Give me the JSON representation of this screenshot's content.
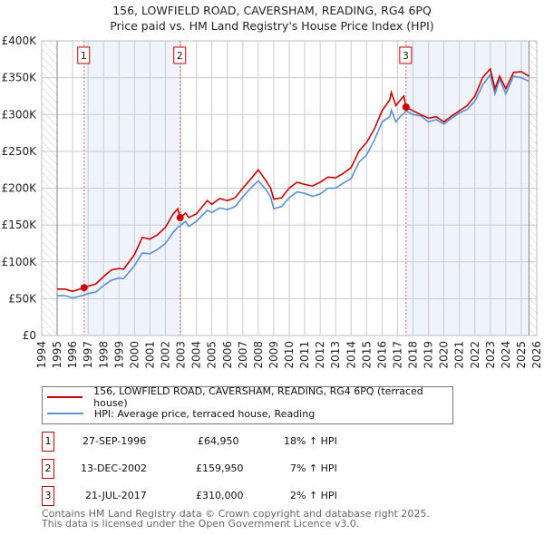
{
  "title": "156, LOWFIELD ROAD, CAVERSHAM, READING, RG4 6PQ",
  "subtitle": "Price paid vs. HM Land Registry's House Price Index (HPI)",
  "chart_data": {
    "type": "line",
    "xlim": [
      1994,
      2026
    ],
    "ylim": [
      0,
      400000
    ],
    "y_ticks": [
      {
        "v": 0,
        "label": "£0"
      },
      {
        "v": 50000,
        "label": "£50K"
      },
      {
        "v": 100000,
        "label": "£100K"
      },
      {
        "v": 150000,
        "label": "£150K"
      },
      {
        "v": 200000,
        "label": "£200K"
      },
      {
        "v": 250000,
        "label": "£250K"
      },
      {
        "v": 300000,
        "label": "£300K"
      },
      {
        "v": 350000,
        "label": "£350K"
      },
      {
        "v": 400000,
        "label": "£400K"
      }
    ],
    "x_ticks": [
      "1994",
      "1995",
      "1996",
      "1997",
      "1998",
      "1999",
      "2000",
      "2001",
      "2002",
      "2003",
      "2004",
      "2005",
      "2006",
      "2007",
      "2008",
      "2009",
      "2010",
      "2011",
      "2012",
      "2013",
      "2014",
      "2015",
      "2016",
      "2017",
      "2018",
      "2019",
      "2020",
      "2021",
      "2022",
      "2023",
      "2024",
      "2025",
      "2026"
    ],
    "data_range": [
      1995,
      2025.5
    ],
    "shaded": [
      [
        1996.74,
        2002.95
      ],
      [
        2017.55,
        2025.5
      ]
    ],
    "series": [
      {
        "name": "156, LOWFIELD ROAD, CAVERSHAM, READING, RG4 6PQ (terraced house)",
        "color": "#cc0000",
        "x": [
          1995,
          1995.5,
          1996,
          1996.75,
          1997,
          1997.5,
          1998,
          1998.5,
          1999,
          1999.3,
          2000,
          2000.5,
          2001,
          2001.5,
          2002,
          2002.5,
          2002.8,
          2002.95,
          2003.3,
          2003.5,
          2004,
          2004.7,
          2005,
          2005.5,
          2006,
          2006.5,
          2007,
          2007.5,
          2008,
          2008.5,
          2008.8,
          2009,
          2009.5,
          2010,
          2010.5,
          2011,
          2011.5,
          2012,
          2012.5,
          2013,
          2013.5,
          2014,
          2014.5,
          2015,
          2015.5,
          2016,
          2016.5,
          2016.6,
          2016.9,
          2017.2,
          2017.4,
          2017.55,
          2018,
          2018.5,
          2019,
          2019.5,
          2020,
          2020.5,
          2021,
          2021.5,
          2022,
          2022.5,
          2023,
          2023.3,
          2023.6,
          2024,
          2024.5,
          2025,
          2025.5
        ],
        "y": [
          63000,
          63000,
          60000,
          64950,
          67000,
          70000,
          80000,
          89000,
          91000,
          90000,
          110000,
          133000,
          131000,
          137000,
          147000,
          165000,
          172000,
          159950,
          166000,
          160000,
          165000,
          183000,
          178000,
          186000,
          183000,
          187000,
          200000,
          212000,
          225000,
          210000,
          200000,
          185000,
          187000,
          200000,
          208000,
          205000,
          203000,
          208000,
          215000,
          214000,
          220000,
          228000,
          250000,
          262000,
          280000,
          305000,
          320000,
          330000,
          312000,
          320000,
          325000,
          310000,
          305000,
          300000,
          295000,
          297000,
          290000,
          298000,
          305000,
          312000,
          325000,
          350000,
          362000,
          335000,
          352000,
          335000,
          357000,
          358000,
          352000
        ]
      },
      {
        "name": "HPI: Average price, terraced house, Reading",
        "color": "#5b8fd4",
        "x": [
          1995,
          1995.5,
          1996,
          1996.75,
          1997,
          1997.5,
          1998,
          1998.5,
          1999,
          1999.3,
          2000,
          2000.5,
          2001,
          2001.5,
          2002,
          2002.5,
          2002.8,
          2002.95,
          2003.3,
          2003.5,
          2004,
          2004.7,
          2005,
          2005.5,
          2006,
          2006.5,
          2007,
          2007.5,
          2008,
          2008.5,
          2008.8,
          2009,
          2009.5,
          2010,
          2010.5,
          2011,
          2011.5,
          2012,
          2012.5,
          2013,
          2013.5,
          2014,
          2014.5,
          2015,
          2015.5,
          2016,
          2016.5,
          2016.6,
          2016.9,
          2017.2,
          2017.4,
          2017.55,
          2018,
          2018.5,
          2019,
          2019.5,
          2020,
          2020.5,
          2021,
          2021.5,
          2022,
          2022.5,
          2023,
          2023.3,
          2023.6,
          2024,
          2024.5,
          2025,
          2025.5
        ],
        "y": [
          54000,
          54000,
          51000,
          55000,
          57000,
          59000,
          68000,
          75000,
          78000,
          77000,
          95000,
          112000,
          111000,
          117000,
          125000,
          140000,
          147000,
          149000,
          155000,
          148000,
          155000,
          170000,
          167000,
          173000,
          171000,
          175000,
          188000,
          200000,
          210000,
          198000,
          188000,
          172000,
          175000,
          187000,
          195000,
          193000,
          189000,
          192000,
          200000,
          200000,
          207000,
          213000,
          235000,
          245000,
          265000,
          290000,
          297000,
          306000,
          290000,
          298000,
          301000,
          305000,
          300000,
          298000,
          290000,
          293000,
          287000,
          295000,
          302000,
          307000,
          318000,
          340000,
          354000,
          328000,
          348000,
          328000,
          352000,
          350000,
          345000
        ]
      }
    ],
    "sales": [
      {
        "label": "1",
        "x": 1996.74,
        "y": 64950
      },
      {
        "label": "2",
        "x": 2002.95,
        "y": 159950
      },
      {
        "label": "3",
        "x": 2017.55,
        "y": 310000
      }
    ]
  },
  "legend": {
    "items": [
      "156, LOWFIELD ROAD, CAVERSHAM, READING, RG4 6PQ (terraced house)",
      "HPI: Average price, terraced house, Reading"
    ]
  },
  "transactions": [
    {
      "num": "1",
      "date": "27-SEP-1996",
      "price": "£64,950",
      "hpi": "18% ↑ HPI"
    },
    {
      "num": "2",
      "date": "13-DEC-2002",
      "price": "£159,950",
      "hpi": "7% ↑ HPI"
    },
    {
      "num": "3",
      "date": "21-JUL-2017",
      "price": "£310,000",
      "hpi": "2% ↑ HPI"
    }
  ],
  "footer": {
    "line1": "Contains HM Land Registry data © Crown copyright and database right 2025.",
    "line2": "This data is licensed under the Open Government Licence v3.0."
  }
}
